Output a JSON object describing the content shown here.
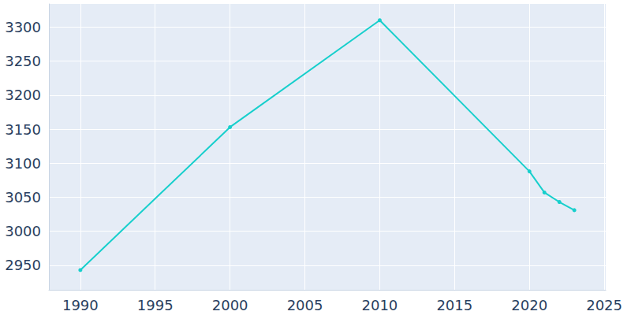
{
  "chart_data": {
    "type": "line",
    "x": [
      1990,
      2000,
      2010,
      2020,
      2021,
      2022,
      2023
    ],
    "values": [
      2943,
      3153,
      3310,
      3088,
      3057,
      3043,
      3031
    ],
    "color": "#17cfcc",
    "marker": "circle",
    "xlim": [
      1987.9,
      2025.1
    ],
    "xticks": [
      1990,
      1995,
      2000,
      2005,
      2010,
      2015,
      2020,
      2025
    ],
    "ylim": [
      2914,
      3334
    ],
    "yticks": [
      2950,
      3000,
      3050,
      3100,
      3150,
      3200,
      3250,
      3300
    ],
    "grid": true
  }
}
